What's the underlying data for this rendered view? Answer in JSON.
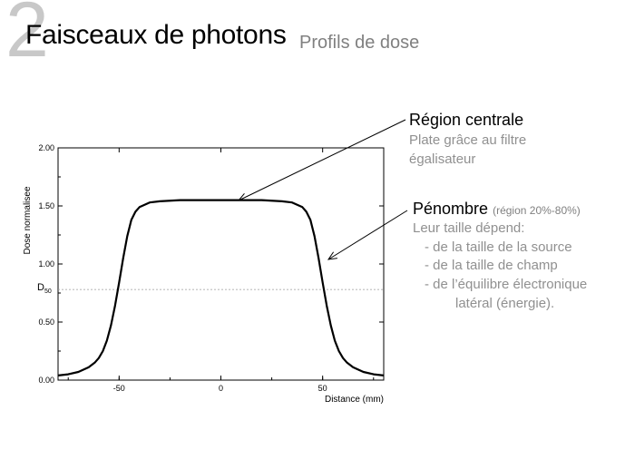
{
  "slide": {
    "number": "2",
    "title": "Faisceaux de photons",
    "subtitle": "Profils de dose"
  },
  "annotations": {
    "central": {
      "heading": "Région centrale",
      "lines": [
        "Plate grâce au filtre",
        "égalisateur"
      ]
    },
    "penumbra": {
      "heading": "Pénombre",
      "heading_note": "(région 20%-80%)",
      "lines": [
        "Leur taille dépend:",
        "- de la taille de la source",
        "- de la taille de champ",
        "- de l’équilibre électronique",
        "latéral (énergie)."
      ]
    }
  },
  "colors": {
    "curve": "#000000",
    "axis": "#000000",
    "reference_line": "#999999",
    "annotation_text": "#909090",
    "slide_number": "#c8c8c8"
  },
  "chart_data": {
    "type": "line",
    "title": "",
    "xlabel": "Distance (mm)",
    "ylabel": "Dose normalisee",
    "xlim": [
      -80,
      80
    ],
    "ylim": [
      0,
      2
    ],
    "xticks": [
      -50,
      0,
      50
    ],
    "xtick_labels": [
      "-50",
      "0",
      "50"
    ],
    "yticks": [
      0,
      0.5,
      1.0,
      1.5,
      2.0
    ],
    "ytick_labels": [
      "0.00",
      "0.50",
      "1.00",
      "1.50",
      "2.00"
    ],
    "grid": false,
    "reference_line": {
      "label_main": "D",
      "label_sub": "50",
      "y": 0.78,
      "style": "dashed"
    },
    "series": [
      {
        "x": [
          -80,
          -75,
          -70,
          -65,
          -62,
          -60,
          -58,
          -56,
          -54,
          -52,
          -50,
          -48,
          -46,
          -44,
          -42,
          -40,
          -35,
          -30,
          -20,
          -10,
          0,
          10,
          20,
          30,
          35,
          40,
          42,
          44,
          46,
          48,
          50,
          52,
          54,
          56,
          58,
          60,
          62,
          65,
          70,
          75,
          80
        ],
        "y": [
          0.04,
          0.05,
          0.07,
          0.11,
          0.15,
          0.19,
          0.25,
          0.34,
          0.47,
          0.64,
          0.84,
          1.05,
          1.24,
          1.38,
          1.45,
          1.49,
          1.53,
          1.54,
          1.55,
          1.55,
          1.55,
          1.55,
          1.55,
          1.54,
          1.53,
          1.49,
          1.45,
          1.38,
          1.24,
          1.05,
          0.84,
          0.64,
          0.47,
          0.34,
          0.25,
          0.19,
          0.15,
          0.11,
          0.07,
          0.05,
          0.04
        ]
      }
    ]
  }
}
